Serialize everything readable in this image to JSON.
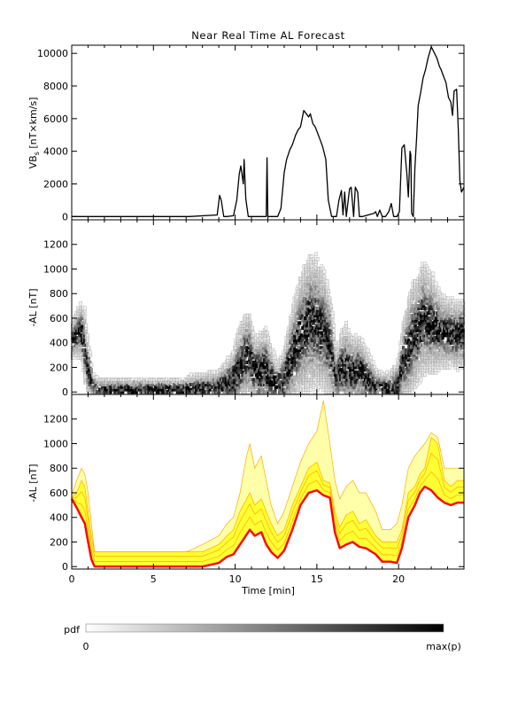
{
  "title": "Near Real Time AL Forecast",
  "colors": {
    "vbs_line": "#000000",
    "median": "#ff0000",
    "band_inner": "#ffff33",
    "band_outer": "#ffffaa",
    "envelope": "#ffaa00"
  },
  "colorbar": {
    "label": "pdf",
    "min_label": "0",
    "max_label": "max(p)"
  },
  "chart_data": [
    {
      "id": "vbs",
      "type": "line",
      "ylabel_main": "VB",
      "ylabel_sub": "s",
      "ylabel_rest": " [nT×km/s]",
      "xlim": [
        0,
        24
      ],
      "ylim": [
        -200,
        10500
      ],
      "yticks": [
        0,
        2000,
        4000,
        6000,
        8000,
        10000
      ],
      "yticklabels": [
        "0",
        "2000",
        "4000",
        "6000",
        "8000",
        "10000"
      ],
      "x": [
        0,
        7.2,
        8.9,
        9.05,
        9.15,
        9.3,
        9.5,
        9.9,
        10.1,
        10.25,
        10.35,
        10.5,
        10.55,
        10.65,
        10.8,
        11.6,
        11.9,
        11.95,
        12.0,
        12.1,
        12.6,
        12.8,
        13.0,
        13.15,
        13.35,
        13.5,
        13.7,
        13.85,
        14.0,
        14.2,
        14.35,
        14.5,
        14.6,
        14.75,
        14.9,
        15.05,
        15.2,
        15.35,
        15.55,
        15.7,
        15.9,
        16.2,
        16.35,
        16.5,
        16.6,
        16.7,
        16.8,
        17.0,
        17.1,
        17.25,
        17.35,
        17.5,
        17.6,
        17.8,
        18.5,
        18.6,
        18.7,
        18.85,
        19.0,
        19.2,
        19.4,
        19.55,
        19.7,
        19.9,
        20.05,
        20.2,
        20.35,
        20.5,
        20.6,
        20.7,
        20.75,
        20.8,
        20.9,
        21.0,
        21.1,
        21.2,
        21.35,
        21.5,
        21.65,
        21.8,
        22.0,
        22.2,
        22.35,
        22.5,
        22.6,
        22.75,
        22.9,
        23.05,
        23.2,
        23.3,
        23.4,
        23.55,
        23.65,
        23.75,
        23.85,
        24.0
      ],
      "values": [
        0,
        0,
        100,
        1300,
        1000,
        0,
        0,
        50,
        1000,
        2600,
        3100,
        2000,
        3500,
        1100,
        0,
        0,
        0,
        3600,
        0,
        0,
        0,
        500,
        2700,
        3500,
        4100,
        4400,
        5000,
        5300,
        5500,
        6500,
        6300,
        6100,
        6300,
        5700,
        5500,
        5100,
        4700,
        4300,
        3500,
        1000,
        0,
        0,
        1000,
        1600,
        100,
        1500,
        0,
        1700,
        1800,
        0,
        1800,
        1500,
        0,
        0,
        200,
        300,
        0,
        400,
        0,
        0,
        300,
        800,
        0,
        0,
        300,
        4200,
        4400,
        2700,
        1200,
        4000,
        3800,
        200,
        0,
        3000,
        4800,
        6800,
        7600,
        8500,
        9000,
        9700,
        10400,
        10000,
        9700,
        9200,
        9000,
        8600,
        8200,
        7300,
        7000,
        6200,
        7700,
        7800,
        5500,
        2200,
        1500,
        1800
      ]
    },
    {
      "id": "al-pdf",
      "type": "heatmap",
      "ylabel": "-AL [nT]",
      "xlim": [
        0,
        24
      ],
      "ylim": [
        -20,
        1400
      ],
      "yticks": [
        0,
        200,
        400,
        600,
        800,
        1000,
        1200
      ],
      "yticklabels": [
        "0",
        "200",
        "400",
        "600",
        "800",
        "1000",
        "1200"
      ],
      "x": [
        0,
        0.3,
        0.6,
        0.8,
        1.0,
        1.3,
        1.6,
        2.0,
        4.0,
        7.0,
        7.2,
        8.0,
        8.9,
        9.3,
        9.9,
        10.3,
        10.6,
        10.9,
        11.2,
        11.5,
        11.9,
        12.2,
        12.6,
        13.0,
        13.5,
        14.0,
        14.5,
        15.0,
        15.5,
        15.9,
        16.2,
        16.5,
        16.8,
        17.2,
        17.6,
        18.0,
        18.6,
        19.0,
        19.5,
        20.0,
        20.3,
        20.6,
        20.9,
        21.2,
        21.5,
        21.8,
        22.2,
        22.6,
        23.0,
        23.5,
        24.0
      ],
      "center": [
        420,
        470,
        500,
        380,
        200,
        60,
        20,
        20,
        20,
        20,
        20,
        40,
        40,
        60,
        100,
        200,
        280,
        300,
        180,
        160,
        180,
        120,
        60,
        100,
        280,
        450,
        560,
        560,
        500,
        340,
        120,
        180,
        200,
        160,
        180,
        120,
        40,
        30,
        30,
        40,
        250,
        330,
        450,
        500,
        600,
        580,
        540,
        500,
        480,
        470,
        470
      ],
      "spread": [
        180,
        240,
        300,
        380,
        300,
        150,
        120,
        120,
        120,
        120,
        150,
        150,
        160,
        220,
        300,
        450,
        450,
        480,
        360,
        420,
        480,
        340,
        220,
        320,
        520,
        640,
        700,
        700,
        620,
        520,
        280,
        400,
        460,
        380,
        360,
        340,
        200,
        160,
        180,
        300,
        420,
        560,
        600,
        560,
        600,
        560,
        500,
        380,
        360,
        360,
        360
      ],
      "cbar": "grayscale"
    },
    {
      "id": "al-forecast",
      "type": "area",
      "ylabel": "-AL [nT]",
      "xlabel": "Time [min]",
      "xlim": [
        0,
        24
      ],
      "ylim": [
        -20,
        1400
      ],
      "xticks": [
        0,
        5,
        10,
        15,
        20
      ],
      "xticklabels": [
        "0",
        "5",
        "10",
        "15",
        "20"
      ],
      "yticks": [
        0,
        200,
        400,
        600,
        800,
        1000,
        1200
      ],
      "yticklabels": [
        "0",
        "200",
        "400",
        "600",
        "800",
        "1000",
        "1200"
      ],
      "x": [
        0,
        0.3,
        0.6,
        0.8,
        1.0,
        1.2,
        1.4,
        1.6,
        2.0,
        4.0,
        7.0,
        7.2,
        8.0,
        9.0,
        9.5,
        9.9,
        10.3,
        10.7,
        10.9,
        11.2,
        11.6,
        11.9,
        12.2,
        12.6,
        13.0,
        13.5,
        14.0,
        14.5,
        15.0,
        15.4,
        15.8,
        16.1,
        16.4,
        16.8,
        17.2,
        17.6,
        18.0,
        18.6,
        19.0,
        19.5,
        19.9,
        20.2,
        20.6,
        21.0,
        21.3,
        21.6,
        22.0,
        22.4,
        22.8,
        23.2,
        23.6,
        24.0
      ],
      "median": [
        550,
        480,
        400,
        350,
        200,
        60,
        0,
        0,
        0,
        0,
        0,
        0,
        0,
        30,
        80,
        100,
        180,
        260,
        300,
        250,
        280,
        180,
        120,
        70,
        130,
        300,
        500,
        600,
        620,
        580,
        560,
        280,
        150,
        180,
        200,
        160,
        150,
        100,
        40,
        40,
        30,
        150,
        400,
        500,
        600,
        650,
        620,
        560,
        520,
        500,
        520,
        520
      ],
      "inner_upper": [
        560,
        600,
        700,
        650,
        450,
        250,
        120,
        120,
        120,
        120,
        120,
        120,
        120,
        180,
        250,
        300,
        450,
        550,
        600,
        500,
        550,
        450,
        350,
        250,
        300,
        500,
        650,
        800,
        850,
        700,
        680,
        450,
        320,
        420,
        450,
        350,
        380,
        250,
        200,
        200,
        200,
        300,
        600,
        650,
        750,
        800,
        1050,
        1000,
        700,
        650,
        700,
        700
      ],
      "outer_upper": [
        580,
        700,
        800,
        750,
        600,
        350,
        120,
        120,
        120,
        120,
        120,
        130,
        180,
        250,
        350,
        400,
        600,
        900,
        1000,
        800,
        900,
        700,
        500,
        350,
        450,
        650,
        850,
        1000,
        1100,
        1350,
        1000,
        700,
        550,
        650,
        700,
        600,
        600,
        450,
        300,
        300,
        350,
        500,
        800,
        900,
        950,
        1000,
        1090,
        1050,
        800,
        800,
        800,
        800
      ]
    }
  ]
}
